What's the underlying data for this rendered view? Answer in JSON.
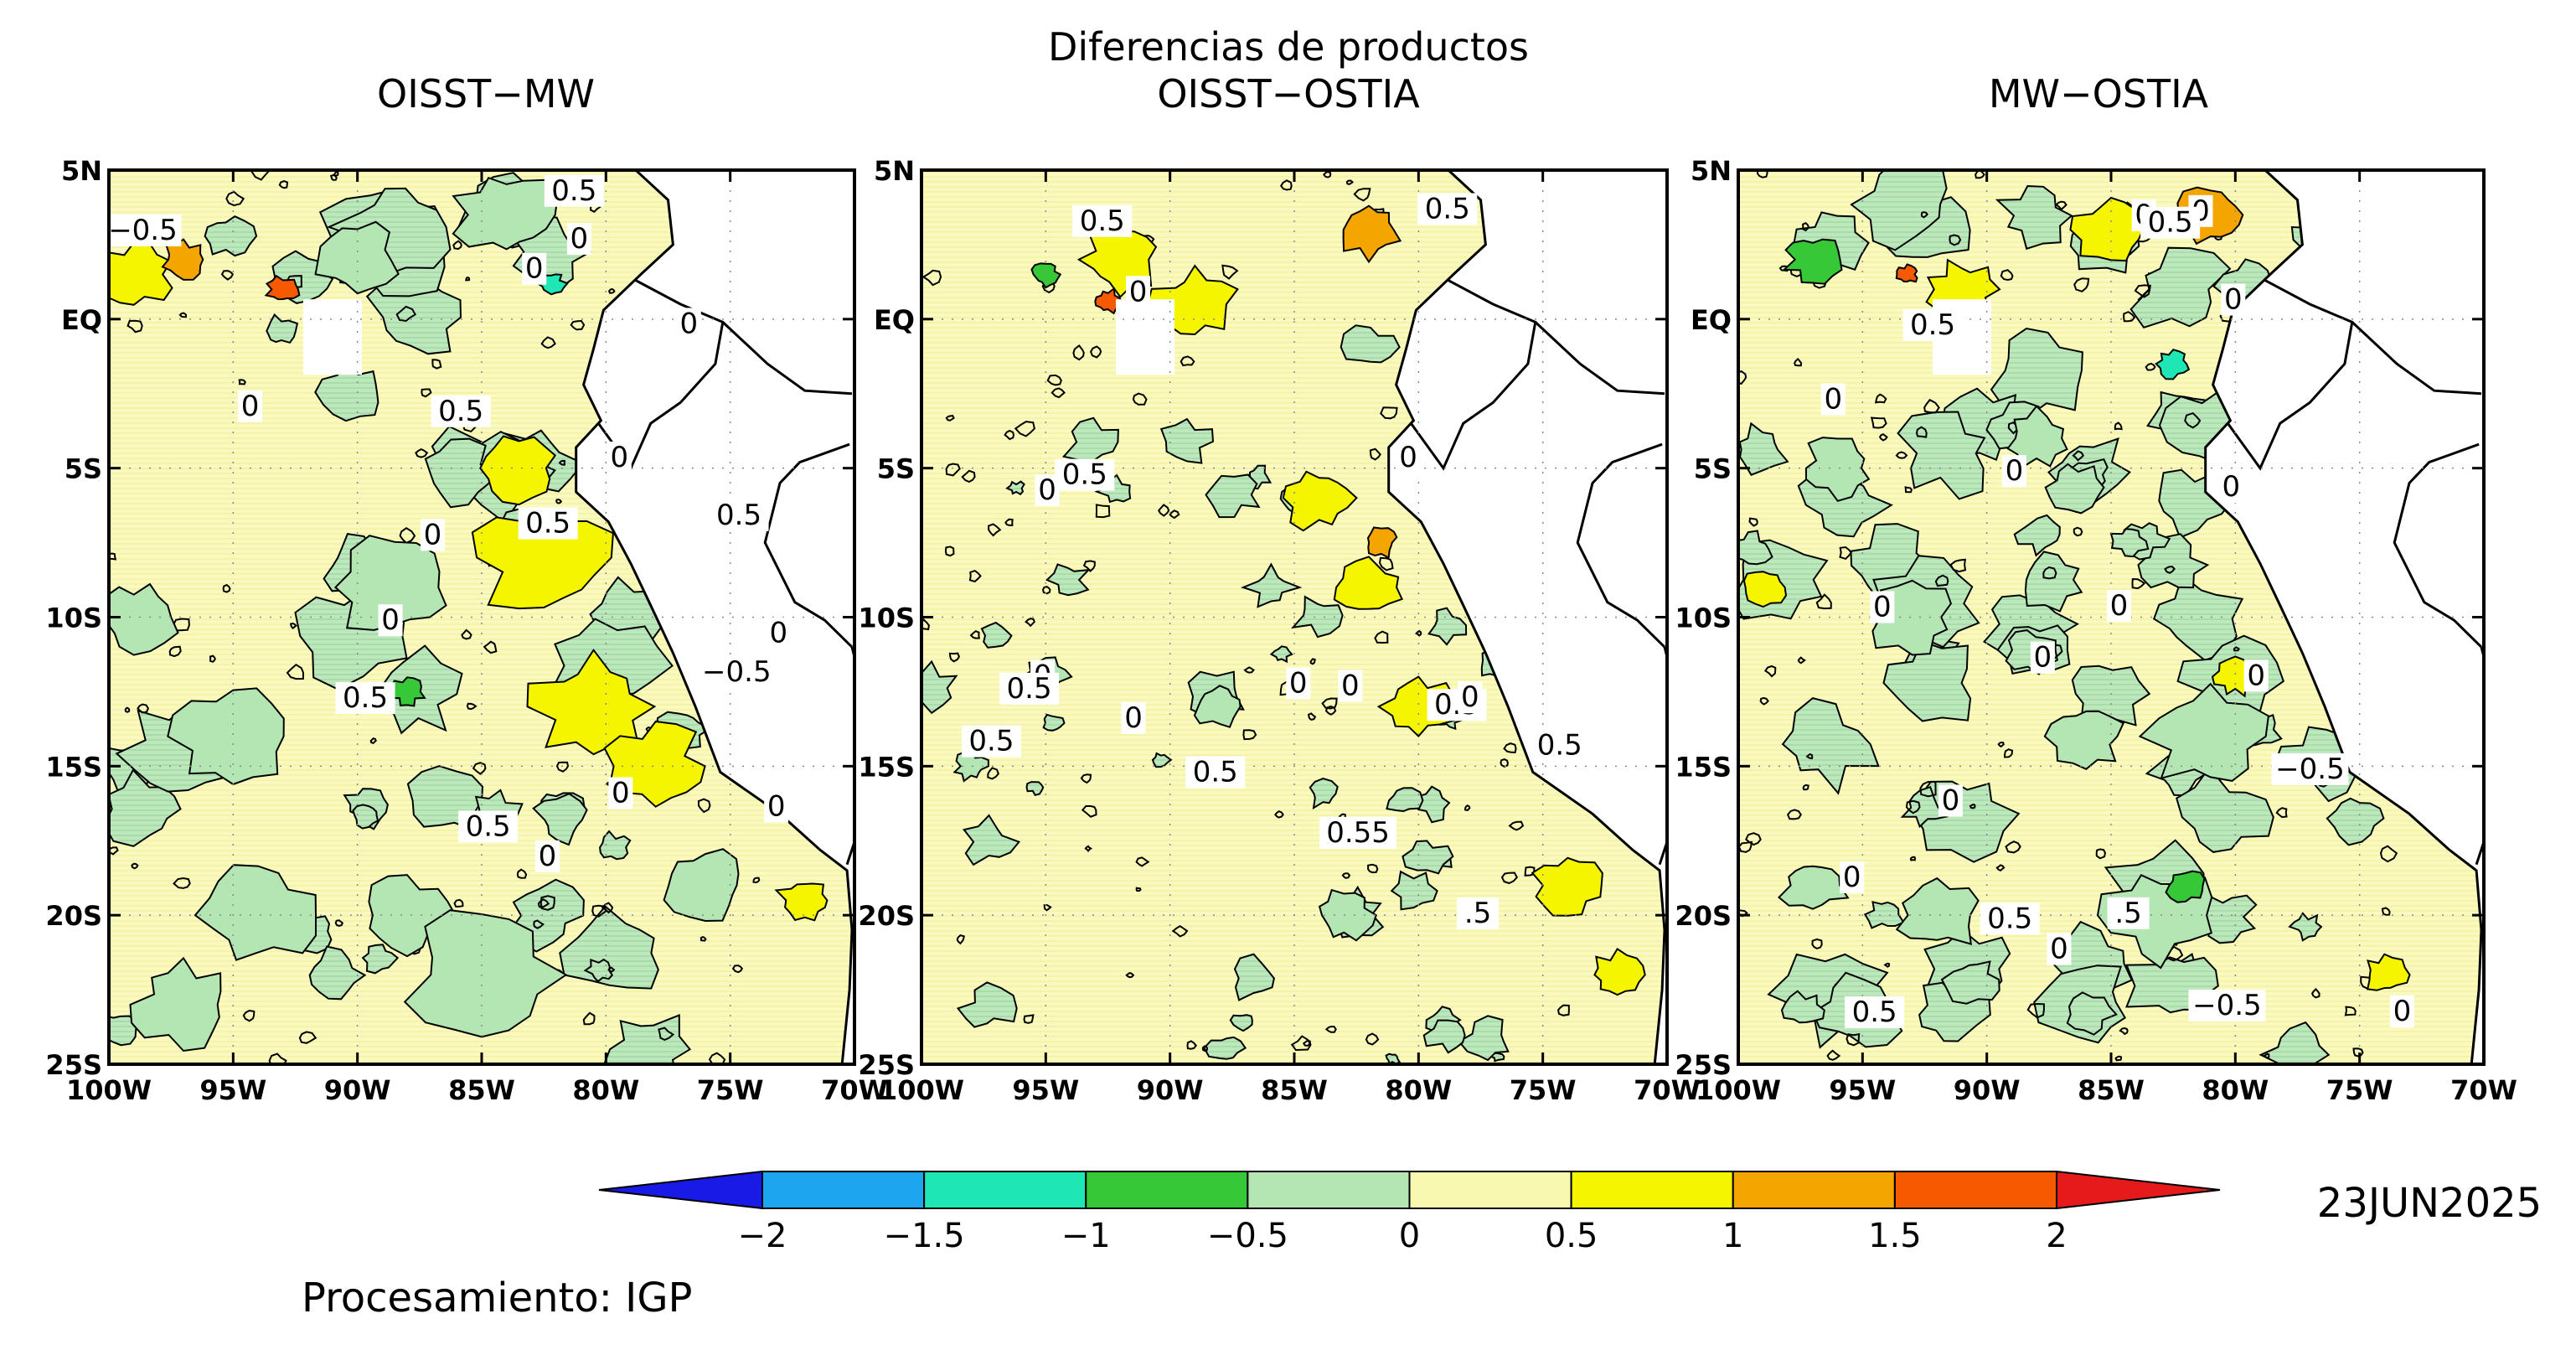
{
  "figure": {
    "main_title": "Diferencias de productos",
    "date": "23JUN2025",
    "processing": "Procesamiento: IGP"
  },
  "panels": [
    {
      "id": "oisst-mw",
      "title": "OISST−MW",
      "contour_labels": [
        "0.5",
        "0",
        "0",
        "−0.5",
        "0.5",
        "0",
        "0.5",
        "0.5",
        "0",
        "0",
        "−0.5",
        "0",
        "0.5",
        "0",
        "0.5",
        "0",
        "0",
        "0",
        "0"
      ]
    },
    {
      "id": "oisst-ostia",
      "title": "OISST−OSTIA",
      "contour_labels": [
        "0",
        "0.5",
        "0",
        "0",
        "0.5",
        ".5",
        "0.5",
        "0.5",
        "0.5",
        "0.5",
        "0",
        "0.5",
        "0",
        "0",
        "0",
        "0.55",
        "0",
        "0.5"
      ]
    },
    {
      "id": "mw-ostia",
      "title": "MW−OSTIA",
      "contour_labels": [
        ".5",
        "0.5",
        "−0.5",
        "0.5",
        "0",
        "0",
        "0",
        "0.5",
        "0",
        "0",
        "0",
        "0",
        "0",
        "0",
        "−0.5",
        "0",
        "0",
        "0",
        "0",
        "0",
        "0.5"
      ]
    }
  ],
  "axes": {
    "lat_ticks": [
      "5N",
      "EQ",
      "5S",
      "10S",
      "15S",
      "20S",
      "25S"
    ],
    "lon_ticks_panel1": [
      "100W",
      "95W",
      "90W",
      "85W",
      "80W",
      "75W",
      "70W"
    ],
    "lon_ticks_panel2": [
      "100W",
      "95W",
      "90W",
      "85W",
      "80W",
      "75W",
      "70W"
    ],
    "lon_ticks_panel3": [
      "100W",
      "95W",
      "90W",
      "85W",
      "80W",
      "75W",
      "70W"
    ]
  },
  "colorbar": {
    "labels": [
      "−2",
      "−1.5",
      "−1",
      "−0.5",
      "0",
      "0.5",
      "1",
      "1.5",
      "2"
    ],
    "colors": [
      "#1a1ae6",
      "#1ea5f0",
      "#1ee6b4",
      "#37c837",
      "#b4e6b4",
      "#f8f8b0",
      "#f5f500",
      "#f5a500",
      "#f55a00",
      "#e61a1a"
    ],
    "levels": [
      -2,
      -1.5,
      -1,
      -0.5,
      0,
      0.5,
      1,
      1.5,
      2
    ]
  }
}
